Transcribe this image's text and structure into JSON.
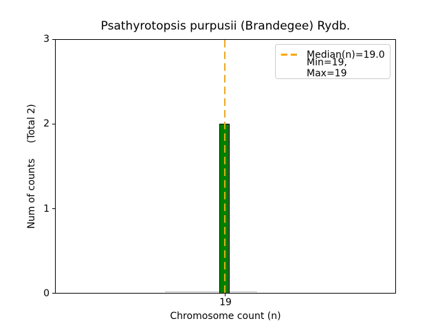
{
  "chart_data": {
    "type": "bar",
    "title": "Psathyrotopsis purpusii (Brandegee) Rydb.",
    "xlabel": "Chromosome count (n)",
    "ylabel": "Num of counts     (Total 2)",
    "categories": [
      "19"
    ],
    "values": [
      2
    ],
    "total_counts": 2,
    "median_n": 19.0,
    "min_n": 19,
    "max_n": 19,
    "ylim": [
      0,
      3
    ],
    "yticks": [
      "0",
      "1",
      "2",
      "3"
    ],
    "xticks": [
      "19"
    ],
    "grid": false,
    "legend": {
      "position": "upper right",
      "entries": [
        {
          "label": "Median(n)=19.0",
          "marker": "orange-dashed-line"
        },
        {
          "label": "Min=19, Max=19",
          "marker": "none"
        }
      ]
    },
    "colors": {
      "bar_fill": "#008000",
      "bar_edge": "#000000",
      "median_line": "#ffa500",
      "zero_bars_edge": "#b9b9b9",
      "legend_border": "#cccccc",
      "axis": "#000000",
      "text": "#000000",
      "background": "#ffffff"
    }
  }
}
